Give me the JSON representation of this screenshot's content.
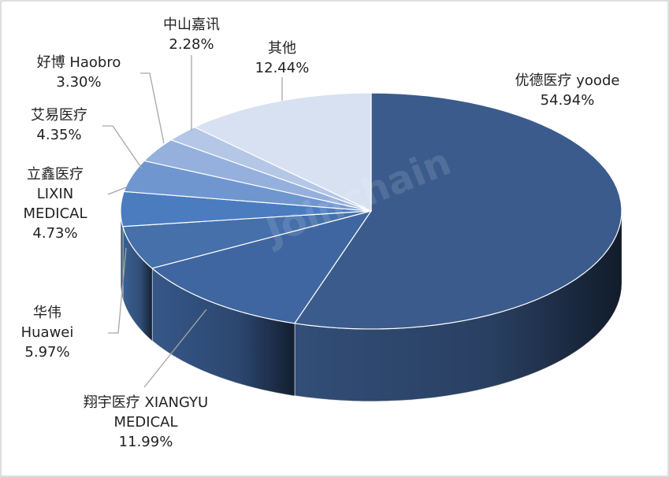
{
  "chart_data": {
    "type": "pie",
    "categories": [
      "优德医疗 yoode",
      "翔宇医疗 XIANGYU MEDICAL",
      "华伟 Huawei",
      "立鑫医疗 LIXIN MEDICAL",
      "艾易医疗",
      "好博 Haobro",
      "中山嘉讯",
      "其他"
    ],
    "values": [
      54.94,
      11.99,
      5.97,
      4.73,
      4.35,
      3.3,
      2.28,
      12.44
    ],
    "value_labels": [
      "54.94%",
      "11.99%",
      "5.97%",
      "4.73%",
      "4.35%",
      "3.30%",
      "2.28%",
      "12.44%"
    ],
    "colors": [
      "#3b5b8c",
      "#3f66a0",
      "#4570aa",
      "#4a7cbf",
      "#7096d0",
      "#95b0dc",
      "#b4c7e7",
      "#d7e1f2"
    ],
    "watermark": "Joinchain"
  }
}
